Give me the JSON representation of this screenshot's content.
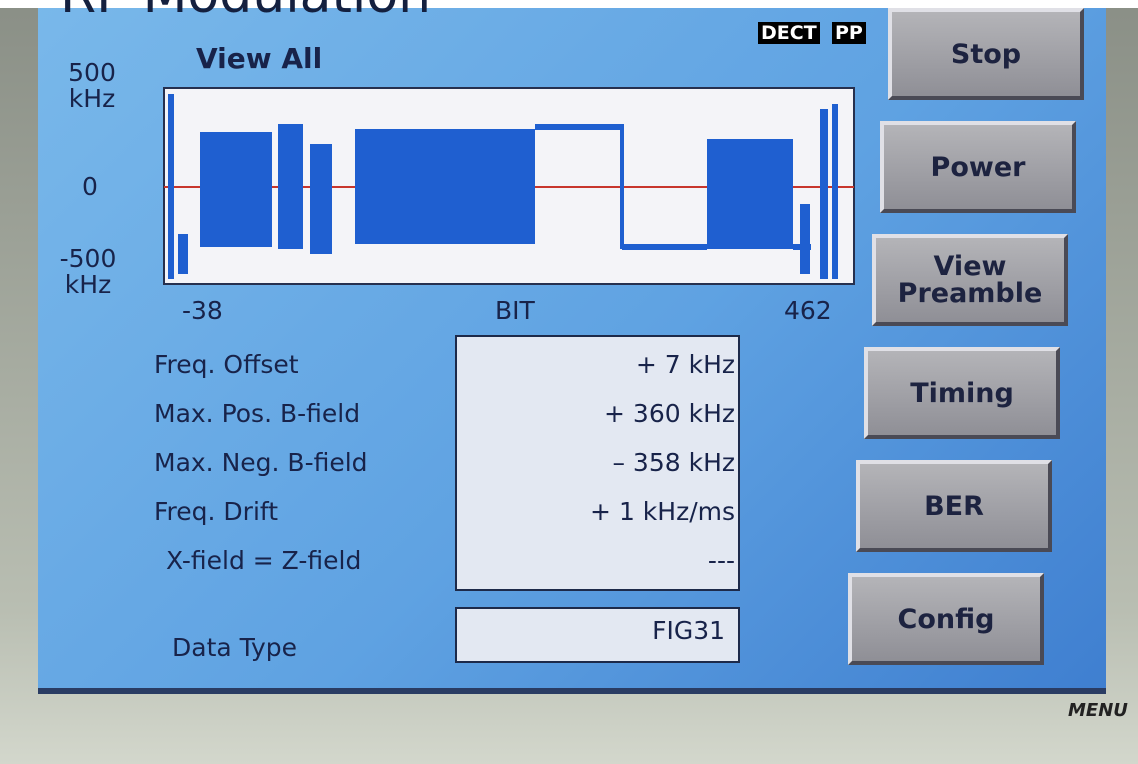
{
  "header": {
    "title": "RF Modulation",
    "badges": [
      "DECT",
      "PP"
    ],
    "view": "View All"
  },
  "graph": {
    "y_axis": {
      "top": "500\nkHz",
      "zero": "0",
      "bottom": "-500\nkHz"
    },
    "x_axis": {
      "start": "-38",
      "label": "BIT",
      "end": "462"
    }
  },
  "measurements": [
    {
      "label": "Freq. Offset",
      "value": "+ 7 kHz"
    },
    {
      "label": "Max. Pos. B-field",
      "value": "+ 360 kHz"
    },
    {
      "label": "Max. Neg. B-field",
      "value": "– 358 kHz"
    },
    {
      "label": "Freq. Drift",
      "value": "+ 1 kHz/ms"
    },
    {
      "label": "X-field = Z-field",
      "value": "---"
    }
  ],
  "data_type": {
    "label": "Data Type",
    "value": "FIG31"
  },
  "buttons": [
    "Stop",
    "Power",
    "View\nPreamble",
    "Timing",
    "BER",
    "Config"
  ],
  "menu": "MENU"
}
